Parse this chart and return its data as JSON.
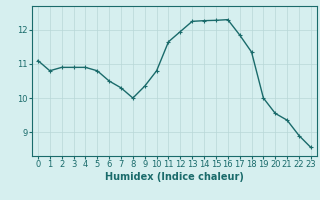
{
  "x": [
    0,
    1,
    2,
    3,
    4,
    5,
    6,
    7,
    8,
    9,
    10,
    11,
    12,
    13,
    14,
    15,
    16,
    17,
    18,
    19,
    20,
    21,
    22,
    23
  ],
  "y": [
    11.1,
    10.8,
    10.9,
    10.9,
    10.9,
    10.8,
    10.5,
    10.3,
    10.0,
    10.35,
    10.8,
    11.65,
    11.95,
    12.25,
    12.27,
    12.28,
    12.3,
    11.85,
    11.35,
    10.0,
    9.55,
    9.35,
    8.9,
    8.55
  ],
  "line_color": "#1a6b6b",
  "marker": "+",
  "marker_size": 3,
  "background_color": "#d6efef",
  "grid_color": "#b8d8d8",
  "xlabel": "Humidex (Indice chaleur)",
  "xlabel_fontsize": 7,
  "tick_fontsize": 6,
  "ylim": [
    8.3,
    12.7
  ],
  "yticks": [
    9,
    10,
    11,
    12
  ],
  "xlim": [
    -0.5,
    23.5
  ],
  "line_width": 1.0
}
